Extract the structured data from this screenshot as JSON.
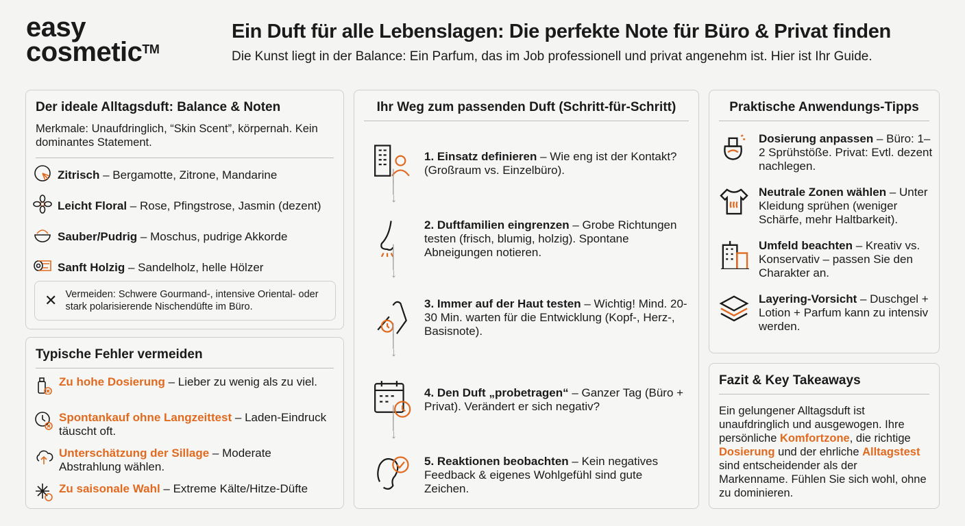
{
  "brand": {
    "line1": "easy",
    "line2": "cosmetic",
    "tm": "TM"
  },
  "header": {
    "title": "Ein Duft für alle Lebenslagen: Die perfekte Note für Büro & Privat finden",
    "subtitle": "Die Kunst liegt in der Balance: Ein Parfum, das im Job professionell und privat angenehm ist. Hier ist Ihr Guide."
  },
  "accent_color": "#e06a1f",
  "balance": {
    "title": "Der ideale Alltagsduft: Balance & Noten",
    "intro": "Merkmale: Unaufdringlich, “Skin Scent”, körpernah. Kein dominantes Statement.",
    "notes": [
      {
        "icon": "citrus-icon",
        "name": "Zitrisch",
        "text": " – Bergamotte, Zitrone, Mandarine"
      },
      {
        "icon": "flower-icon",
        "name": "Leicht Floral",
        "text": " – Rose, Pfingstrose, Jasmin (dezent)"
      },
      {
        "icon": "powder-icon",
        "name": "Sauber/Pudrig",
        "text": " – Moschus, pudrige Akkorde"
      },
      {
        "icon": "wood-log-icon",
        "name": "Sanft Holzig",
        "text": " – Sandelholz, helle Hölzer"
      }
    ],
    "avoid": "Vermeiden: Schwere Gourmand-, intensive Oriental- oder stark polarisierende Nischendüfte im Büro."
  },
  "mistakes": {
    "title": "Typische Fehler vermeiden",
    "items": [
      {
        "icon": "spray-bottle-x-icon",
        "name": "Zu hohe Dosierung",
        "text": " – Lieber zu wenig als zu viel."
      },
      {
        "icon": "clock-x-icon",
        "name": "Spontankauf ohne Langzeittest",
        "text": " – Laden-Eindruck täuscht oft."
      },
      {
        "icon": "cloud-up-icon",
        "name": "Unterschätzung der Sillage",
        "text": " – Moderate Abstrahlung wählen."
      },
      {
        "icon": "snowflake-sun-icon",
        "name": "Zu saisonale Wahl",
        "text": " – Extreme Kälte/Hitze-Düfte"
      }
    ]
  },
  "steps": {
    "title": "Ihr Weg zum passenden Duft (Schritt-für-Schritt)",
    "items": [
      {
        "icon": "office-person-icon",
        "name": "1. Einsatz definieren",
        "text": " – Wie eng ist der Kontakt? (Großraum vs. Einzelbüro)."
      },
      {
        "icon": "nose-icon",
        "name": "2. Duftfamilien eingrenzen",
        "text": " – Grobe Richtungen testen (frisch, blumig, holzig). Spontane Abneigungen notieren."
      },
      {
        "icon": "wrist-watch-icon",
        "name": "3. Immer auf der Haut testen",
        "text": " – Wichtig! Mind. 20-30 Min. warten für die Entwicklung (Kopf-, Herz-, Basisnote)."
      },
      {
        "icon": "calendar-clock-icon",
        "name": "4. Den Duft „probetragen“",
        "text": " – Ganzer Tag (Büro + Privat). Verändert er sich negativ?"
      },
      {
        "icon": "ear-check-icon",
        "name": "5. Reaktionen beobachten",
        "text": " – Kein negatives Feedback & eigenes Wohlgefühl sind gute Zeichen."
      }
    ]
  },
  "tips": {
    "title": "Praktische Anwendungs-Tipps",
    "items": [
      {
        "icon": "perfume-bottle-icon",
        "name": "Dosierung anpassen",
        "text": " – Büro: 1–2 Sprühstöße. Privat: Evtl. dezent nachlegen."
      },
      {
        "icon": "tshirt-icon",
        "name": "Neutrale Zonen wählen",
        "text": " – Unter Kleidung sprühen (weniger Schärfe, mehr Haltbarkeit)."
      },
      {
        "icon": "buildings-icon",
        "name": "Umfeld beachten",
        "text": " – Kreativ vs. Konservativ – passen Sie den Charakter an."
      },
      {
        "icon": "layers-icon",
        "name": "Layering-Vorsicht",
        "text": " – Duschgel + Lotion + Parfum kann zu intensiv werden."
      }
    ]
  },
  "summary": {
    "title": "Fazit & Key Takeaways",
    "parts": [
      "Ein gelungener Alltagsduft ist unaufdringlich und ausgewogen. Ihre persönliche ",
      "Komfortzone",
      ", die richtige ",
      "Dosierung",
      " und der ehrliche ",
      "Alltagstest",
      " sind entscheidender als der Markenname. Fühlen Sie sich wohl, ohne zu dominieren."
    ]
  }
}
